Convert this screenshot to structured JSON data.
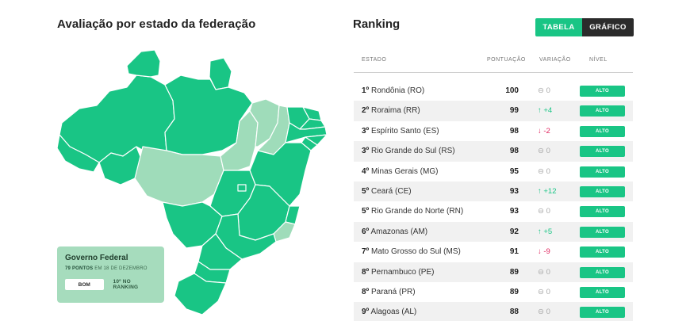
{
  "left": {
    "title": "Avaliação por estado da federação",
    "map_colors": {
      "dark": "#19c585",
      "light": "#9fdcba",
      "border": "#ffffff"
    },
    "gov_card": {
      "title": "Governo Federal",
      "points": "79 PONTOS",
      "date": "EM 18 DE DEZEMBRO",
      "level": "BOM",
      "ranking": "10º NO RANKING"
    }
  },
  "right": {
    "title": "Ranking",
    "tabs": [
      "TABELA",
      "GRÁFICO"
    ],
    "active_tab": "TABELA",
    "headers": [
      "ESTADO",
      "PONTUAÇÃO",
      "VARIAÇÃO",
      "NÍVEL"
    ],
    "rows": [
      {
        "rank": "1º",
        "state": "Rondônia (RO)",
        "score": "100",
        "variation": "⊖ 0",
        "trend": "neutral",
        "level": "ALTO"
      },
      {
        "rank": "2º",
        "state": "Roraima (RR)",
        "score": "99",
        "variation": "↑ +4",
        "trend": "up",
        "level": "ALTO"
      },
      {
        "rank": "3º",
        "state": "Espírito Santo (ES)",
        "score": "98",
        "variation": "↓ -2",
        "trend": "down",
        "level": "ALTO"
      },
      {
        "rank": "3º",
        "state": "Rio Grande do Sul (RS)",
        "score": "98",
        "variation": "⊖ 0",
        "trend": "neutral",
        "level": "ALTO"
      },
      {
        "rank": "4º",
        "state": "Minas Gerais (MG)",
        "score": "95",
        "variation": "⊖ 0",
        "trend": "neutral",
        "level": "ALTO"
      },
      {
        "rank": "5º",
        "state": "Ceará (CE)",
        "score": "93",
        "variation": "↑ +12",
        "trend": "up",
        "level": "ALTO"
      },
      {
        "rank": "5º",
        "state": "Rio Grande do Norte (RN)",
        "score": "93",
        "variation": "⊖ 0",
        "trend": "neutral",
        "level": "ALTO"
      },
      {
        "rank": "6º",
        "state": "Amazonas (AM)",
        "score": "92",
        "variation": "↑ +5",
        "trend": "up",
        "level": "ALTO"
      },
      {
        "rank": "7º",
        "state": "Mato Grosso do Sul (MS)",
        "score": "91",
        "variation": "↓ -9",
        "trend": "down",
        "level": "ALTO"
      },
      {
        "rank": "8º",
        "state": "Pernambuco (PE)",
        "score": "89",
        "variation": "⊖ 0",
        "trend": "neutral",
        "level": "ALTO"
      },
      {
        "rank": "8º",
        "state": "Paraná (PR)",
        "score": "89",
        "variation": "⊖ 0",
        "trend": "neutral",
        "level": "ALTO"
      },
      {
        "rank": "9º",
        "state": "Alagoas (AL)",
        "score": "88",
        "variation": "⊖ 0",
        "trend": "neutral",
        "level": "ALTO"
      }
    ]
  }
}
